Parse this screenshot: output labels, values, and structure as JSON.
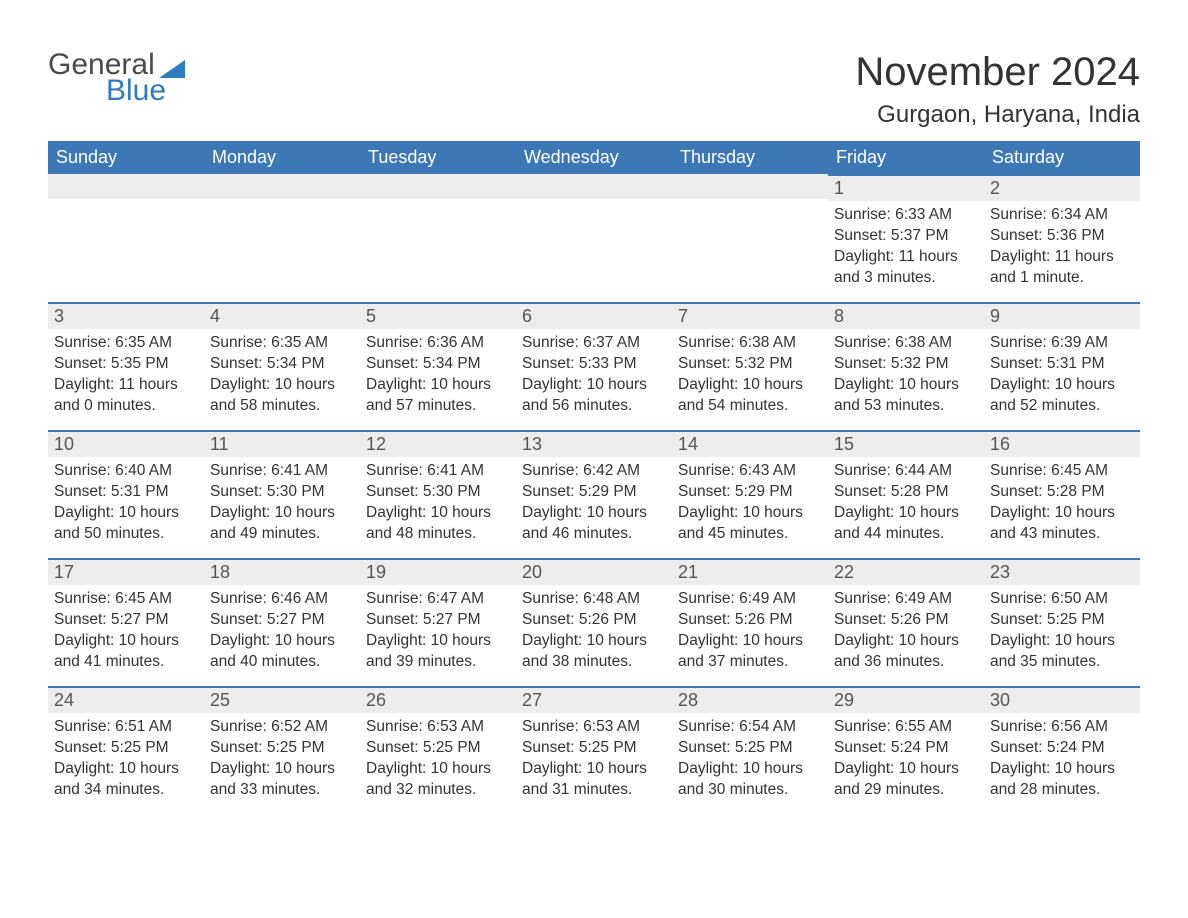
{
  "brand": {
    "word1": "General",
    "word2": "Blue",
    "text_color": "#4a4a4a",
    "accent_color": "#2f7bbf"
  },
  "title": "November 2024",
  "location": "Gurgaon, Haryana, India",
  "colors": {
    "header_bg": "#3b78b5",
    "header_text": "#ffffff",
    "daynum_bg": "#ededed",
    "border_top": "#3b78b5",
    "body_text": "#333333",
    "background": "#ffffff"
  },
  "fonts": {
    "title_size": 40,
    "location_size": 24,
    "header_size": 18,
    "daynum_size": 18,
    "cell_size": 15.5
  },
  "calendar": {
    "type": "table",
    "columns": [
      "Sunday",
      "Monday",
      "Tuesday",
      "Wednesday",
      "Thursday",
      "Friday",
      "Saturday"
    ],
    "weeks": [
      [
        null,
        null,
        null,
        null,
        null,
        {
          "n": "1",
          "sunrise": "Sunrise: 6:33 AM",
          "sunset": "Sunset: 5:37 PM",
          "day1": "Daylight: 11 hours",
          "day2": "and 3 minutes."
        },
        {
          "n": "2",
          "sunrise": "Sunrise: 6:34 AM",
          "sunset": "Sunset: 5:36 PM",
          "day1": "Daylight: 11 hours",
          "day2": "and 1 minute."
        }
      ],
      [
        {
          "n": "3",
          "sunrise": "Sunrise: 6:35 AM",
          "sunset": "Sunset: 5:35 PM",
          "day1": "Daylight: 11 hours",
          "day2": "and 0 minutes."
        },
        {
          "n": "4",
          "sunrise": "Sunrise: 6:35 AM",
          "sunset": "Sunset: 5:34 PM",
          "day1": "Daylight: 10 hours",
          "day2": "and 58 minutes."
        },
        {
          "n": "5",
          "sunrise": "Sunrise: 6:36 AM",
          "sunset": "Sunset: 5:34 PM",
          "day1": "Daylight: 10 hours",
          "day2": "and 57 minutes."
        },
        {
          "n": "6",
          "sunrise": "Sunrise: 6:37 AM",
          "sunset": "Sunset: 5:33 PM",
          "day1": "Daylight: 10 hours",
          "day2": "and 56 minutes."
        },
        {
          "n": "7",
          "sunrise": "Sunrise: 6:38 AM",
          "sunset": "Sunset: 5:32 PM",
          "day1": "Daylight: 10 hours",
          "day2": "and 54 minutes."
        },
        {
          "n": "8",
          "sunrise": "Sunrise: 6:38 AM",
          "sunset": "Sunset: 5:32 PM",
          "day1": "Daylight: 10 hours",
          "day2": "and 53 minutes."
        },
        {
          "n": "9",
          "sunrise": "Sunrise: 6:39 AM",
          "sunset": "Sunset: 5:31 PM",
          "day1": "Daylight: 10 hours",
          "day2": "and 52 minutes."
        }
      ],
      [
        {
          "n": "10",
          "sunrise": "Sunrise: 6:40 AM",
          "sunset": "Sunset: 5:31 PM",
          "day1": "Daylight: 10 hours",
          "day2": "and 50 minutes."
        },
        {
          "n": "11",
          "sunrise": "Sunrise: 6:41 AM",
          "sunset": "Sunset: 5:30 PM",
          "day1": "Daylight: 10 hours",
          "day2": "and 49 minutes."
        },
        {
          "n": "12",
          "sunrise": "Sunrise: 6:41 AM",
          "sunset": "Sunset: 5:30 PM",
          "day1": "Daylight: 10 hours",
          "day2": "and 48 minutes."
        },
        {
          "n": "13",
          "sunrise": "Sunrise: 6:42 AM",
          "sunset": "Sunset: 5:29 PM",
          "day1": "Daylight: 10 hours",
          "day2": "and 46 minutes."
        },
        {
          "n": "14",
          "sunrise": "Sunrise: 6:43 AM",
          "sunset": "Sunset: 5:29 PM",
          "day1": "Daylight: 10 hours",
          "day2": "and 45 minutes."
        },
        {
          "n": "15",
          "sunrise": "Sunrise: 6:44 AM",
          "sunset": "Sunset: 5:28 PM",
          "day1": "Daylight: 10 hours",
          "day2": "and 44 minutes."
        },
        {
          "n": "16",
          "sunrise": "Sunrise: 6:45 AM",
          "sunset": "Sunset: 5:28 PM",
          "day1": "Daylight: 10 hours",
          "day2": "and 43 minutes."
        }
      ],
      [
        {
          "n": "17",
          "sunrise": "Sunrise: 6:45 AM",
          "sunset": "Sunset: 5:27 PM",
          "day1": "Daylight: 10 hours",
          "day2": "and 41 minutes."
        },
        {
          "n": "18",
          "sunrise": "Sunrise: 6:46 AM",
          "sunset": "Sunset: 5:27 PM",
          "day1": "Daylight: 10 hours",
          "day2": "and 40 minutes."
        },
        {
          "n": "19",
          "sunrise": "Sunrise: 6:47 AM",
          "sunset": "Sunset: 5:27 PM",
          "day1": "Daylight: 10 hours",
          "day2": "and 39 minutes."
        },
        {
          "n": "20",
          "sunrise": "Sunrise: 6:48 AM",
          "sunset": "Sunset: 5:26 PM",
          "day1": "Daylight: 10 hours",
          "day2": "and 38 minutes."
        },
        {
          "n": "21",
          "sunrise": "Sunrise: 6:49 AM",
          "sunset": "Sunset: 5:26 PM",
          "day1": "Daylight: 10 hours",
          "day2": "and 37 minutes."
        },
        {
          "n": "22",
          "sunrise": "Sunrise: 6:49 AM",
          "sunset": "Sunset: 5:26 PM",
          "day1": "Daylight: 10 hours",
          "day2": "and 36 minutes."
        },
        {
          "n": "23",
          "sunrise": "Sunrise: 6:50 AM",
          "sunset": "Sunset: 5:25 PM",
          "day1": "Daylight: 10 hours",
          "day2": "and 35 minutes."
        }
      ],
      [
        {
          "n": "24",
          "sunrise": "Sunrise: 6:51 AM",
          "sunset": "Sunset: 5:25 PM",
          "day1": "Daylight: 10 hours",
          "day2": "and 34 minutes."
        },
        {
          "n": "25",
          "sunrise": "Sunrise: 6:52 AM",
          "sunset": "Sunset: 5:25 PM",
          "day1": "Daylight: 10 hours",
          "day2": "and 33 minutes."
        },
        {
          "n": "26",
          "sunrise": "Sunrise: 6:53 AM",
          "sunset": "Sunset: 5:25 PM",
          "day1": "Daylight: 10 hours",
          "day2": "and 32 minutes."
        },
        {
          "n": "27",
          "sunrise": "Sunrise: 6:53 AM",
          "sunset": "Sunset: 5:25 PM",
          "day1": "Daylight: 10 hours",
          "day2": "and 31 minutes."
        },
        {
          "n": "28",
          "sunrise": "Sunrise: 6:54 AM",
          "sunset": "Sunset: 5:25 PM",
          "day1": "Daylight: 10 hours",
          "day2": "and 30 minutes."
        },
        {
          "n": "29",
          "sunrise": "Sunrise: 6:55 AM",
          "sunset": "Sunset: 5:24 PM",
          "day1": "Daylight: 10 hours",
          "day2": "and 29 minutes."
        },
        {
          "n": "30",
          "sunrise": "Sunrise: 6:56 AM",
          "sunset": "Sunset: 5:24 PM",
          "day1": "Daylight: 10 hours",
          "day2": "and 28 minutes."
        }
      ]
    ]
  }
}
